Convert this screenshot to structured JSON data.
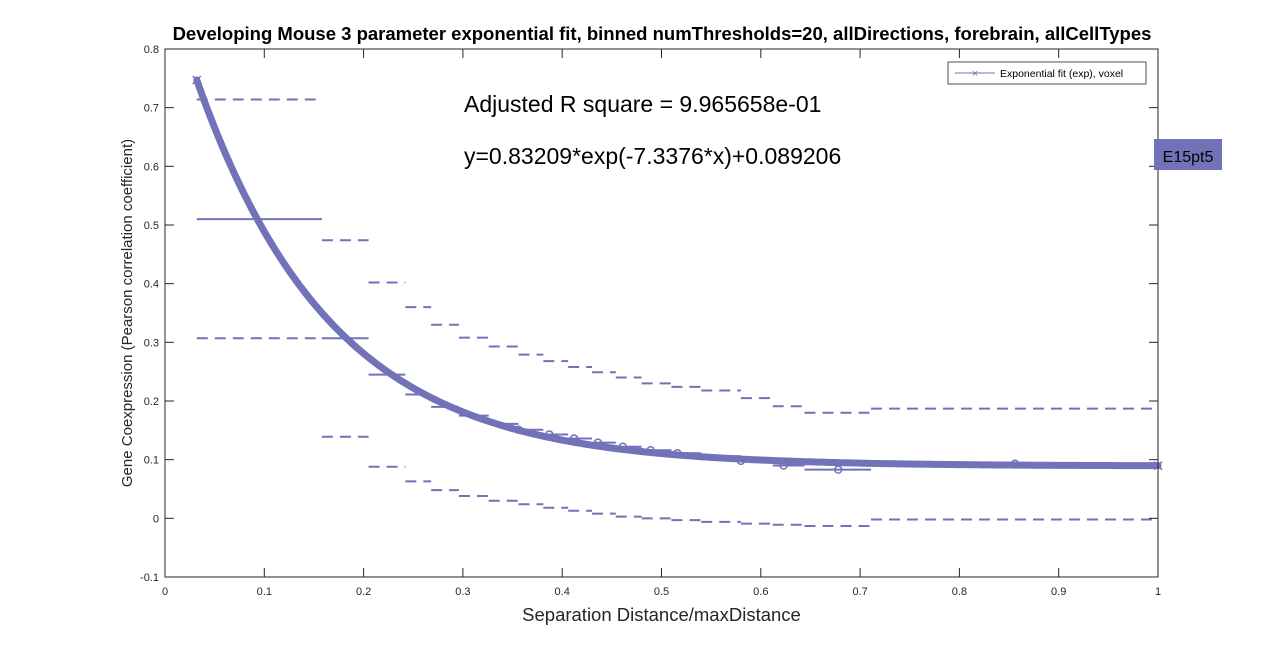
{
  "chart_data": {
    "type": "line",
    "title": "Developing Mouse 3 parameter exponential fit, binned numThresholds=20, allDirections, forebrain, allCellTypes",
    "xlabel": "Separation Distance/maxDistance",
    "ylabel": "Gene Coexpression (Pearson correlation coefficient)",
    "xlim": [
      0,
      1
    ],
    "ylim": [
      -0.1,
      0.8
    ],
    "xticks": [
      0,
      0.1,
      0.2,
      0.3,
      0.4,
      0.5,
      0.6,
      0.7,
      0.8,
      0.9,
      1
    ],
    "xtick_labels": [
      "0",
      "0.1",
      "0.2",
      "0.3",
      "0.4",
      "0.5",
      "0.6",
      "0.7",
      "0.8",
      "0.9",
      "1"
    ],
    "yticks": [
      -0.1,
      0,
      0.1,
      0.2,
      0.3,
      0.4,
      0.5,
      0.6,
      0.7,
      0.8
    ],
    "ytick_labels": [
      "-0.1",
      "0",
      "0.1",
      "0.2",
      "0.3",
      "0.4",
      "0.5",
      "0.6",
      "0.7",
      "0.8"
    ],
    "grid": false,
    "legend_position": "top-right",
    "color": "#7272b8",
    "annotations": {
      "r_square": "Adjusted R square = 9.965658e-01",
      "equation": "y=0.83209*exp(-7.3376*x)+0.089206",
      "tag": "E15pt5"
    },
    "fit": {
      "name": "Exponential fit (exp), voxel",
      "a": 0.83209,
      "b": -7.3376,
      "c": 0.089206,
      "x_range": [
        0.032,
        1.0
      ]
    },
    "bins": [
      {
        "x0": 0.032,
        "x1": 0.158,
        "mean": 0.51,
        "upper": 0.714,
        "lower": 0.307
      },
      {
        "x0": 0.158,
        "x1": 0.205,
        "mean": 0.307,
        "upper": 0.474,
        "lower": 0.139
      },
      {
        "x0": 0.205,
        "x1": 0.242,
        "mean": 0.245,
        "upper": 0.402,
        "lower": 0.088
      },
      {
        "x0": 0.242,
        "x1": 0.268,
        "mean": 0.211,
        "upper": 0.36,
        "lower": 0.063
      },
      {
        "x0": 0.268,
        "x1": 0.296,
        "mean": 0.19,
        "upper": 0.33,
        "lower": 0.048
      },
      {
        "x0": 0.296,
        "x1": 0.326,
        "mean": 0.175,
        "upper": 0.308,
        "lower": 0.038
      },
      {
        "x0": 0.326,
        "x1": 0.356,
        "mean": 0.161,
        "upper": 0.293,
        "lower": 0.03
      },
      {
        "x0": 0.356,
        "x1": 0.381,
        "mean": 0.151,
        "upper": 0.279,
        "lower": 0.024
      },
      {
        "x0": 0.381,
        "x1": 0.406,
        "mean": 0.143,
        "upper": 0.268,
        "lower": 0.018
      },
      {
        "x0": 0.406,
        "x1": 0.43,
        "mean": 0.136,
        "upper": 0.258,
        "lower": 0.013
      },
      {
        "x0": 0.43,
        "x1": 0.454,
        "mean": 0.129,
        "upper": 0.249,
        "lower": 0.008
      },
      {
        "x0": 0.454,
        "x1": 0.48,
        "mean": 0.122,
        "upper": 0.24,
        "lower": 0.003
      },
      {
        "x0": 0.48,
        "x1": 0.51,
        "mean": 0.116,
        "upper": 0.23,
        "lower": 0.0
      },
      {
        "x0": 0.51,
        "x1": 0.54,
        "mean": 0.111,
        "upper": 0.224,
        "lower": -0.003
      },
      {
        "x0": 0.54,
        "x1": 0.58,
        "mean": 0.106,
        "upper": 0.218,
        "lower": -0.006
      },
      {
        "x0": 0.58,
        "x1": 0.612,
        "mean": 0.098,
        "upper": 0.205,
        "lower": -0.009
      },
      {
        "x0": 0.612,
        "x1": 0.644,
        "mean": 0.09,
        "upper": 0.191,
        "lower": -0.011
      },
      {
        "x0": 0.644,
        "x1": 0.711,
        "mean": 0.083,
        "upper": 0.18,
        "lower": -0.013
      },
      {
        "x0": 0.711,
        "x1": 1.0,
        "mean": 0.093,
        "upper": 0.187,
        "lower": -0.002
      }
    ],
    "points": [
      {
        "x": 0.356,
        "y": 0.151
      },
      {
        "x": 0.387,
        "y": 0.143
      },
      {
        "x": 0.412,
        "y": 0.136
      },
      {
        "x": 0.436,
        "y": 0.129
      },
      {
        "x": 0.461,
        "y": 0.122
      },
      {
        "x": 0.489,
        "y": 0.116
      },
      {
        "x": 0.516,
        "y": 0.111
      },
      {
        "x": 0.58,
        "y": 0.098
      },
      {
        "x": 0.623,
        "y": 0.09
      },
      {
        "x": 0.678,
        "y": 0.083
      },
      {
        "x": 0.856,
        "y": 0.093
      }
    ]
  }
}
